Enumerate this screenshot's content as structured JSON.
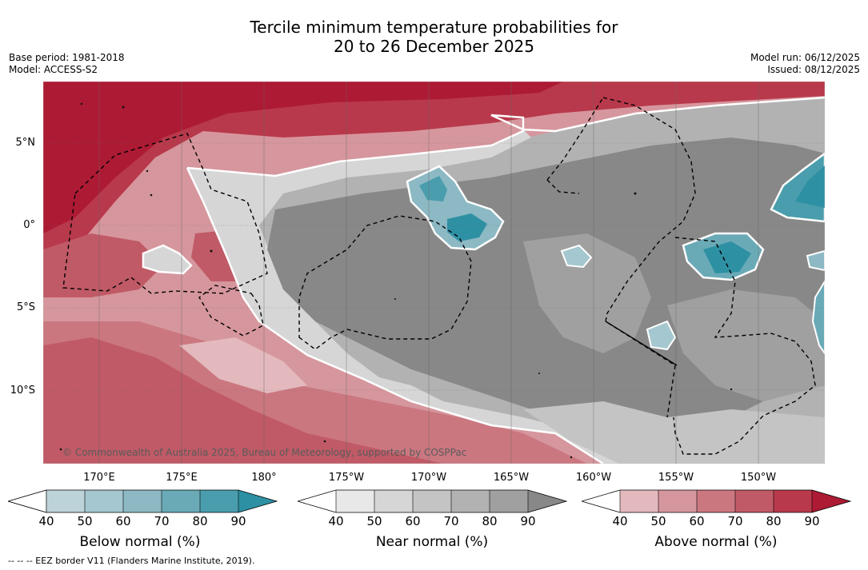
{
  "title": {
    "line1": "Tercile minimum temperature probabilities for",
    "line2": "20 to 26 December 2025"
  },
  "meta": {
    "base_period": "Base period: 1981-2018",
    "model": "Model: ACCESS-S2",
    "model_run": "Model run: 06/12/2025",
    "issued": "Issued: 08/12/2025"
  },
  "axes": {
    "lat_labels": [
      "5°N",
      "0°",
      "5°S",
      "10°S"
    ],
    "lon_labels": [
      "170°E",
      "175°E",
      "180°",
      "175°W",
      "170°W",
      "165°W",
      "160°W",
      "155°W",
      "150°W"
    ]
  },
  "credit": "© Commonwealth of Australia 2025, Bureau of Meteorology, supported by COSPPac",
  "colorbars": [
    {
      "label": "Below normal (%)",
      "ticks": [
        "40",
        "50",
        "60",
        "70",
        "80",
        "90"
      ],
      "colors": [
        "#ffffff",
        "#bdd3da",
        "#a5c7cf",
        "#8cb9c4",
        "#6aaab7",
        "#4a9dac",
        "#2e90a3"
      ]
    },
    {
      "label": "Near normal (%)",
      "ticks": [
        "40",
        "50",
        "60",
        "70",
        "80",
        "90"
      ],
      "colors": [
        "#ffffff",
        "#e8e8e8",
        "#d6d6d6",
        "#c4c4c4",
        "#b2b2b2",
        "#a0a0a0",
        "#888888"
      ]
    },
    {
      "label": "Above normal (%)",
      "ticks": [
        "40",
        "50",
        "60",
        "70",
        "80",
        "90"
      ],
      "colors": [
        "#ffffff",
        "#e3b9bd",
        "#d6969d",
        "#cb7780",
        "#c05a66",
        "#b8394b",
        "#ad1a34"
      ]
    }
  ],
  "footnote": "--  --  -- EEZ border V11 (Flanders Marine Institute, 2019)."
}
